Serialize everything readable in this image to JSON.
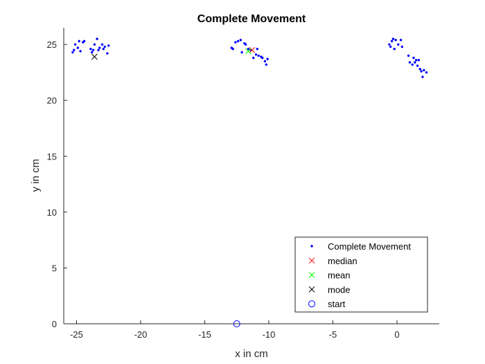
{
  "chart_data": {
    "type": "scatter",
    "title": "Complete Movement",
    "xlabel": "x in cm",
    "ylabel": "y in cm",
    "xlim": [
      -26,
      3.3
    ],
    "ylim": [
      0,
      26.5
    ],
    "xticks": [
      "-25",
      "-20",
      "-15",
      "-10",
      "-5",
      "0"
    ],
    "xtick_values": [
      -25,
      -20,
      -15,
      -10,
      -5,
      0
    ],
    "yticks": [
      "0",
      "5",
      "10",
      "15",
      "20",
      "25"
    ],
    "ytick_values": [
      0,
      5,
      10,
      15,
      20,
      25
    ],
    "grid": false,
    "legend_position": "bottom-right",
    "series": [
      {
        "name": "Complete Movement",
        "marker": "dot",
        "color": "#0000ff",
        "points": [
          [
            -25.3,
            24.3
          ],
          [
            -25.2,
            24.5
          ],
          [
            -25.1,
            25.0
          ],
          [
            -24.9,
            24.7
          ],
          [
            -24.8,
            25.3
          ],
          [
            -24.7,
            24.4
          ],
          [
            -24.5,
            25.2
          ],
          [
            -24.4,
            25.3
          ],
          [
            -23.9,
            24.6
          ],
          [
            -23.8,
            24.3
          ],
          [
            -23.7,
            24.5
          ],
          [
            -23.6,
            25.0
          ],
          [
            -23.4,
            25.5
          ],
          [
            -23.3,
            24.5
          ],
          [
            -23.2,
            24.7
          ],
          [
            -23.0,
            25.0
          ],
          [
            -22.9,
            24.6
          ],
          [
            -22.8,
            24.8
          ],
          [
            -22.6,
            24.2
          ],
          [
            -22.5,
            24.9
          ],
          [
            -12.9,
            24.7
          ],
          [
            -12.8,
            24.6
          ],
          [
            -12.6,
            25.2
          ],
          [
            -12.4,
            25.3
          ],
          [
            -12.2,
            25.4
          ],
          [
            -12.1,
            24.3
          ],
          [
            -11.9,
            25.1
          ],
          [
            -11.8,
            25.0
          ],
          [
            -11.6,
            24.6
          ],
          [
            -11.4,
            24.5
          ],
          [
            -11.2,
            23.8
          ],
          [
            -11.0,
            24.1
          ],
          [
            -10.9,
            24.6
          ],
          [
            -10.8,
            24.0
          ],
          [
            -10.6,
            23.9
          ],
          [
            -10.5,
            23.8
          ],
          [
            -10.3,
            23.5
          ],
          [
            -10.2,
            23.2
          ],
          [
            -10.1,
            23.7
          ],
          [
            -0.6,
            25.0
          ],
          [
            -0.5,
            24.8
          ],
          [
            -0.4,
            25.3
          ],
          [
            -0.3,
            25.5
          ],
          [
            -0.2,
            24.6
          ],
          [
            -0.1,
            25.4
          ],
          [
            0.1,
            25.0
          ],
          [
            0.3,
            25.4
          ],
          [
            0.4,
            24.8
          ],
          [
            0.9,
            24.0
          ],
          [
            1.0,
            23.4
          ],
          [
            1.2,
            23.2
          ],
          [
            1.3,
            23.8
          ],
          [
            1.4,
            23.4
          ],
          [
            1.5,
            23.6
          ],
          [
            1.6,
            23.1
          ],
          [
            1.7,
            23.6
          ],
          [
            1.8,
            22.8
          ],
          [
            1.9,
            22.6
          ],
          [
            2.0,
            22.1
          ],
          [
            2.1,
            22.7
          ],
          [
            2.3,
            22.5
          ]
        ]
      },
      {
        "name": "median",
        "marker": "x",
        "color": "#ff0000",
        "points": [
          [
            -11.3,
            24.5
          ]
        ]
      },
      {
        "name": "mean",
        "marker": "x",
        "color": "#00ff00",
        "points": [
          [
            -11.6,
            24.4
          ]
        ]
      },
      {
        "name": "mode",
        "marker": "x",
        "color": "#000000",
        "points": [
          [
            -23.6,
            23.9
          ]
        ]
      },
      {
        "name": "start",
        "marker": "circle",
        "color": "#0000ff",
        "points": [
          [
            -12.5,
            0
          ]
        ]
      }
    ]
  }
}
